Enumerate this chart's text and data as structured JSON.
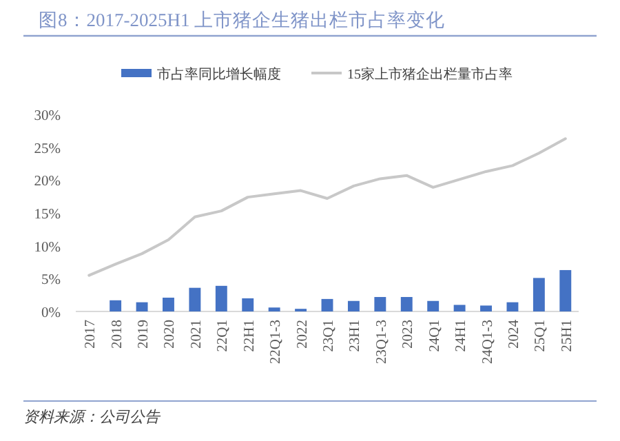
{
  "chart_data": {
    "type": "bar",
    "title": "图8：2017-2025H1 上市猪企生猪出栏市占率变化",
    "categories": [
      "2017",
      "2018",
      "2019",
      "2020",
      "2021",
      "22Q1",
      "22H1",
      "22Q1-3",
      "2022",
      "23Q1",
      "23H1",
      "23Q1-3",
      "2023",
      "24Q1",
      "24H1",
      "24Q1-3",
      "2024",
      "25Q1",
      "25H1"
    ],
    "series": [
      {
        "name": "市占率同比增长幅度",
        "color": "#4472c4",
        "values": [
          null,
          1.7,
          1.4,
          2.1,
          3.6,
          3.9,
          2.0,
          0.6,
          0.4,
          1.9,
          1.6,
          2.2,
          2.2,
          1.6,
          1.0,
          0.9,
          1.4,
          5.1,
          6.3
        ]
      },
      {
        "name": "15家上市猪企出栏量市占率",
        "type": "line",
        "color": "#c8c8c8",
        "values": [
          5.5,
          7.2,
          8.8,
          10.9,
          14.4,
          15.3,
          17.4,
          17.9,
          18.4,
          17.2,
          19.1,
          20.2,
          20.7,
          18.9,
          20.1,
          21.3,
          22.2,
          24.1,
          26.3
        ]
      }
    ],
    "ylim": [
      0,
      30
    ],
    "yticks": [
      {
        "value": 0,
        "label": "0%"
      },
      {
        "value": 5,
        "label": "5%"
      },
      {
        "value": 10,
        "label": "10%"
      },
      {
        "value": 15,
        "label": "15%"
      },
      {
        "value": 20,
        "label": "20%"
      },
      {
        "value": 25,
        "label": "25%"
      },
      {
        "value": 30,
        "label": "30%"
      }
    ],
    "grid": false,
    "legend": "top",
    "marker": "none",
    "line_style": "solid",
    "annotations": [
      "资料来源：公司公告"
    ]
  }
}
